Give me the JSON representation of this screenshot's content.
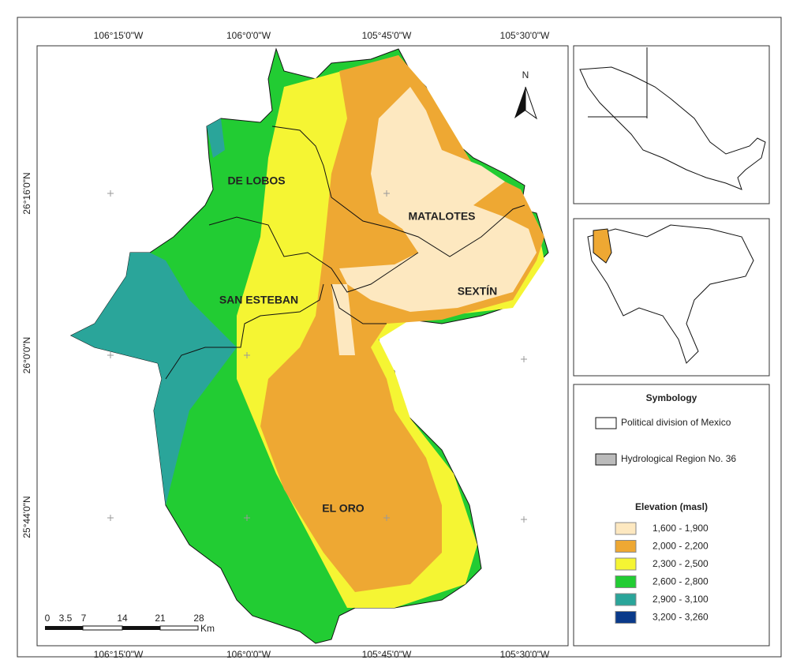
{
  "map": {
    "north_arrow": "N",
    "grid_labels": {
      "top": [
        "106°15'0\"W",
        "106°0'0\"W",
        "105°45'0\"W",
        "105°30'0\"W"
      ],
      "bottom": [
        "106°15'0\"W",
        "106°0'0\"W",
        "105°45'0\"W",
        "105°30'0\"W"
      ],
      "left": [
        "26°16'0\"N",
        "26°0'0\"N",
        "25°44'0\"N"
      ]
    },
    "regions": [
      "DE LOBOS",
      "MATALOTES",
      "SAN ESTEBAN",
      "SEXTÍN",
      "EL ORO"
    ],
    "scale_bar": {
      "labels": [
        "0",
        "3.5",
        "7",
        "14",
        "21",
        "28"
      ],
      "unit": "Km"
    }
  },
  "legend": {
    "title": "Symbology",
    "items": [
      "Political division of Mexico",
      "Hydrological Region No. 36"
    ],
    "elevation_title": "Elevation (masl)",
    "elevation_classes": [
      {
        "label": "1,600 - 1,900",
        "color": "#fde8c0"
      },
      {
        "label": "2,000 - 2,200",
        "color": "#eea833"
      },
      {
        "label": "2,300 - 2,500",
        "color": "#f5f533"
      },
      {
        "label": "2,600 - 2,800",
        "color": "#22cc33"
      },
      {
        "label": "2,900 - 3,100",
        "color": "#2aa59a"
      },
      {
        "label": "3,200 - 3,260",
        "color": "#0a3a8a"
      }
    ]
  }
}
